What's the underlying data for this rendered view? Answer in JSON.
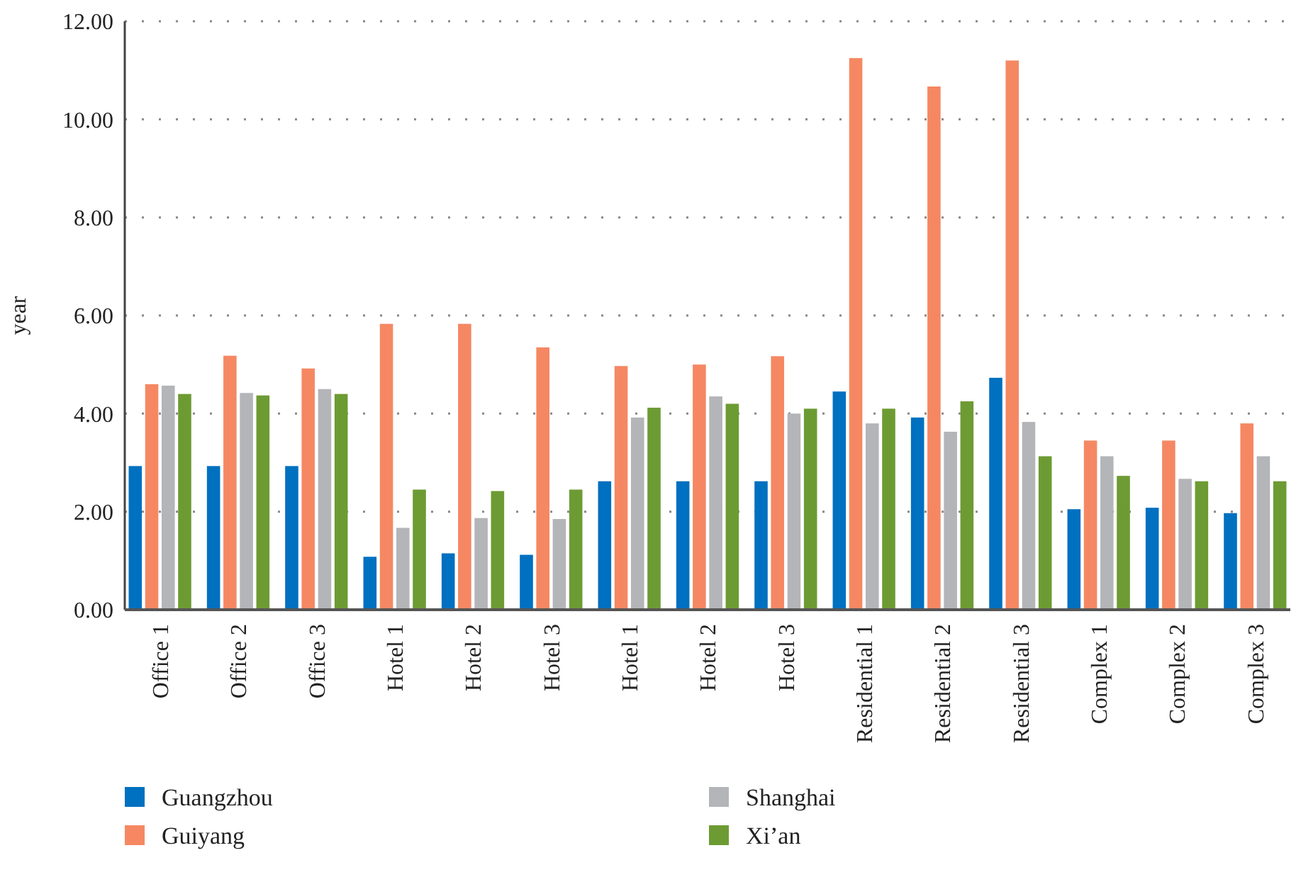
{
  "chart_data": {
    "type": "bar",
    "ylabel": "year",
    "categories": [
      "Office 1",
      "Office 2",
      "Office 3",
      "Hotel 1",
      "Hotel 2",
      "Hotel 3",
      "Hotel 1",
      "Hotel 2",
      "Hotel 3",
      "Residential 1",
      "Residential 2",
      "Residential 3",
      "Complex 1",
      "Complex 2",
      "Complex 3"
    ],
    "series": [
      {
        "name": "Guangzhou",
        "color": "#0070c0",
        "values": [
          2.93,
          2.93,
          2.93,
          1.08,
          1.15,
          1.12,
          2.62,
          2.62,
          2.62,
          4.45,
          3.92,
          4.73,
          2.05,
          2.08,
          1.97
        ]
      },
      {
        "name": "Guiyang",
        "color": "#f58863",
        "values": [
          4.6,
          5.18,
          4.92,
          5.83,
          5.83,
          5.35,
          4.97,
          5.0,
          5.17,
          11.25,
          10.67,
          11.2,
          3.45,
          3.45,
          3.8
        ]
      },
      {
        "name": "Shanghai",
        "color": "#b4b5b8",
        "values": [
          4.57,
          4.42,
          4.5,
          1.67,
          1.87,
          1.85,
          3.92,
          4.35,
          4.0,
          3.8,
          3.63,
          3.83,
          3.13,
          2.67,
          3.13
        ]
      },
      {
        "name": "Xi’an",
        "color": "#6d9b33",
        "values": [
          4.4,
          4.37,
          4.4,
          2.45,
          2.42,
          2.45,
          4.12,
          4.2,
          4.1,
          4.1,
          4.25,
          3.13,
          2.73,
          2.62,
          2.62
        ]
      }
    ],
    "ylim": [
      0,
      12
    ],
    "yticks": [
      {
        "value": 0,
        "label": "0.00"
      },
      {
        "value": 2,
        "label": "2.00"
      },
      {
        "value": 4,
        "label": "4.00"
      },
      {
        "value": 6,
        "label": "6.00"
      },
      {
        "value": 8,
        "label": "8.00"
      },
      {
        "value": 10,
        "label": "10.00"
      },
      {
        "value": 12,
        "label": "12.00"
      }
    ],
    "grid": "y",
    "legend": "bottom"
  }
}
